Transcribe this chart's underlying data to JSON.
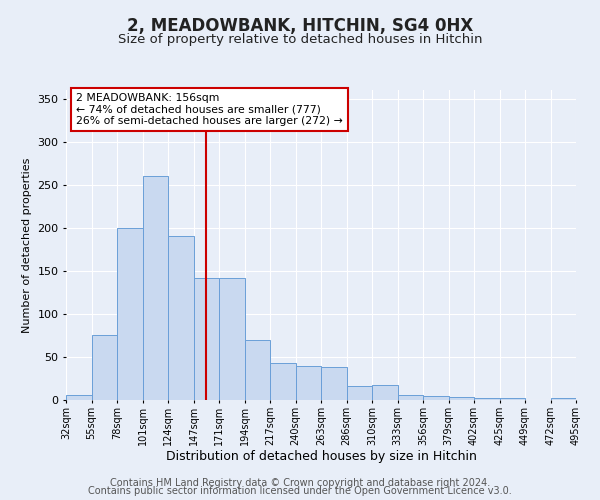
{
  "title": "2, MEADOWBANK, HITCHIN, SG4 0HX",
  "subtitle": "Size of property relative to detached houses in Hitchin",
  "xlabel": "Distribution of detached houses by size in Hitchin",
  "ylabel": "Number of detached properties",
  "bar_values": [
    6,
    75,
    200,
    260,
    190,
    142,
    142,
    70,
    43,
    40,
    38,
    16,
    18,
    6,
    5,
    4,
    2,
    2,
    0,
    2
  ],
  "bin_labels": [
    "32sqm",
    "55sqm",
    "78sqm",
    "101sqm",
    "124sqm",
    "147sqm",
    "171sqm",
    "194sqm",
    "217sqm",
    "240sqm",
    "263sqm",
    "286sqm",
    "310sqm",
    "333sqm",
    "356sqm",
    "379sqm",
    "402sqm",
    "425sqm",
    "449sqm",
    "472sqm",
    "495sqm"
  ],
  "bar_color": "#c9d9f0",
  "bar_edge_color": "#6a9fd8",
  "vline_x": 5.5,
  "vline_color": "#cc0000",
  "annotation_title": "2 MEADOWBANK: 156sqm",
  "annotation_line1": "← 74% of detached houses are smaller (777)",
  "annotation_line2": "26% of semi-detached houses are larger (272) →",
  "annotation_box_color": "#ffffff",
  "annotation_box_edge_color": "#cc0000",
  "ylim": [
    0,
    360
  ],
  "yticks": [
    0,
    50,
    100,
    150,
    200,
    250,
    300,
    350
  ],
  "footer1": "Contains HM Land Registry data © Crown copyright and database right 2024.",
  "footer2": "Contains public sector information licensed under the Open Government Licence v3.0.",
  "background_color": "#e8eef8",
  "plot_bg_color": "#e8eef8",
  "grid_color": "#ffffff",
  "title_fontsize": 12,
  "subtitle_fontsize": 9.5,
  "ylabel_fontsize": 8,
  "xlabel_fontsize": 9,
  "footer_fontsize": 7
}
